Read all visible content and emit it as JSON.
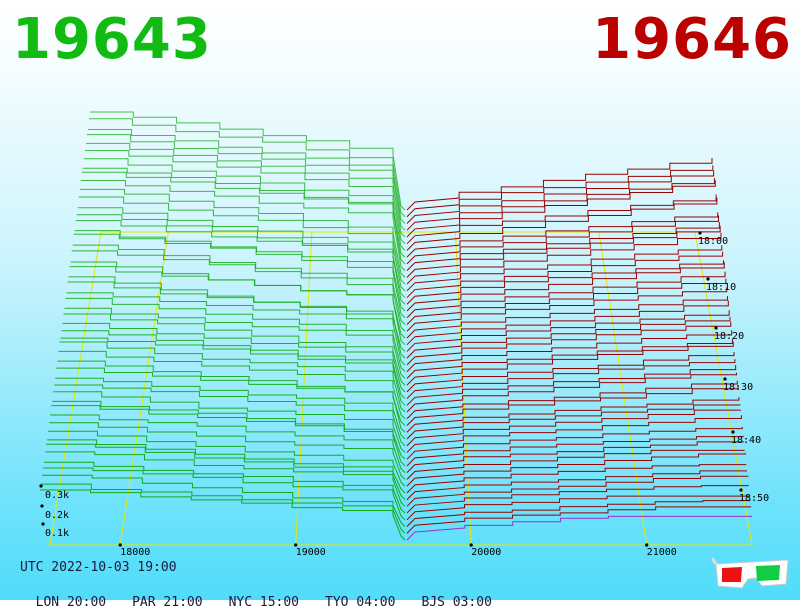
{
  "header": {
    "bid_price": "19643",
    "ask_price": "19646",
    "bid_color": "#11bb11",
    "ask_color": "#bb0000"
  },
  "footer": {
    "utc": "UTC 2022-10-03 19:00",
    "zones": [
      "LON 20:00",
      "PAR 21:00",
      "NYC 15:00",
      "TYO 04:00",
      "BJS 03:00"
    ]
  },
  "chart_data": {
    "type": "area",
    "x_ticks": [
      "18000",
      "19000",
      "20000",
      "21000"
    ],
    "depth_ticks": [
      "0.1k",
      "0.2k",
      "0.3k"
    ],
    "time_ticks": [
      "18:00",
      "18:10",
      "18:20",
      "18:30",
      "18:40",
      "18:50"
    ],
    "bid_color": "#11aa11",
    "ask_color": "#990000",
    "snapshots": 50,
    "grid": true
  },
  "icons": {
    "stereo_glasses": "3d-glasses-icon"
  }
}
